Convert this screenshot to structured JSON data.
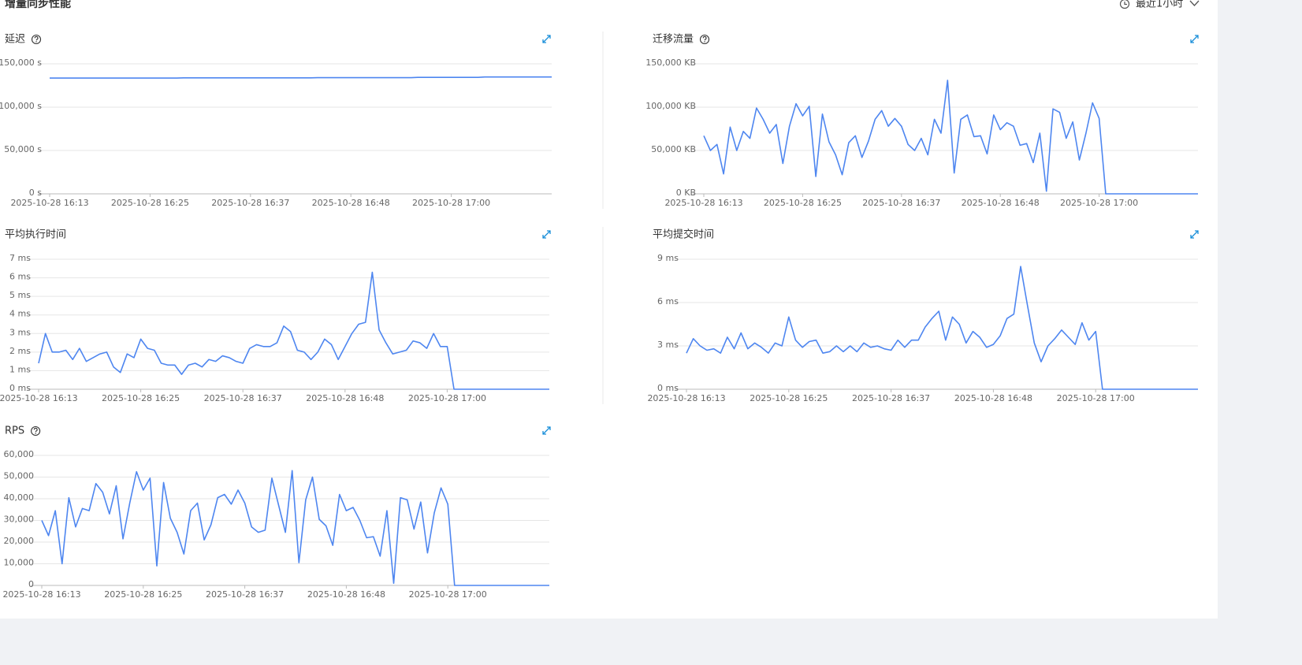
{
  "header": {
    "title": "增量同步性能",
    "time_range": "最近1小时"
  },
  "chart_data": [
    {
      "type": "line",
      "title": "延迟",
      "help_icon": true,
      "color": "#4e86f0",
      "categories": [
        "2025-10-28 16:13",
        null,
        null,
        null,
        null,
        null,
        null,
        null,
        null,
        null,
        null,
        null,
        null,
        null,
        null,
        "2025-10-28 16:25",
        null,
        null,
        null,
        null,
        null,
        null,
        null,
        null,
        null,
        null,
        null,
        null,
        null,
        null,
        "2025-10-28 16:37",
        null,
        null,
        null,
        null,
        null,
        null,
        null,
        null,
        null,
        null,
        null,
        null,
        null,
        null,
        "2025-10-28 16:48",
        null,
        null,
        null,
        null,
        null,
        null,
        null,
        null,
        null,
        null,
        null,
        null,
        null,
        null,
        "2025-10-28 17:00",
        null,
        null,
        null,
        null,
        null,
        null,
        null,
        null,
        null,
        null,
        null,
        null,
        null,
        null,
        null
      ],
      "values": [
        133600,
        133600,
        133600,
        133600,
        133600,
        133600,
        133600,
        133600,
        133600,
        133600,
        133600,
        133600,
        133600,
        133600,
        133600,
        133600,
        133600,
        133600,
        133600,
        133600,
        133800,
        133800,
        133800,
        133800,
        133800,
        133800,
        133800,
        133800,
        133800,
        133800,
        133800,
        133800,
        133800,
        133800,
        133800,
        133800,
        133800,
        133800,
        133800,
        133800,
        134000,
        134000,
        134000,
        134000,
        134000,
        134000,
        134000,
        134000,
        134000,
        134000,
        134000,
        134000,
        134000,
        134000,
        134000,
        134400,
        134400,
        134400,
        134400,
        134400,
        134400,
        134400,
        134400,
        134400,
        134400,
        134800,
        134800,
        134800,
        134800,
        134800,
        134800,
        134800,
        134800,
        134800,
        134800,
        134800
      ],
      "ylim": [
        0,
        150000
      ],
      "yticks": [
        {
          "value": 0,
          "label": "0 s"
        },
        {
          "value": 50000,
          "label": "50,000 s"
        },
        {
          "value": 100000,
          "label": "100,000 s"
        },
        {
          "value": 150000,
          "label": "150,000 s"
        }
      ],
      "grid": true
    },
    {
      "type": "line",
      "title": "迁移流量",
      "help_icon": true,
      "color": "#4e86f0",
      "categories": [
        "2025-10-28 16:13",
        null,
        null,
        null,
        null,
        null,
        null,
        null,
        null,
        null,
        null,
        null,
        null,
        null,
        null,
        "2025-10-28 16:25",
        null,
        null,
        null,
        null,
        null,
        null,
        null,
        null,
        null,
        null,
        null,
        null,
        null,
        null,
        "2025-10-28 16:37",
        null,
        null,
        null,
        null,
        null,
        null,
        null,
        null,
        null,
        null,
        null,
        null,
        null,
        null,
        "2025-10-28 16:48",
        null,
        null,
        null,
        null,
        null,
        null,
        null,
        null,
        null,
        null,
        null,
        null,
        null,
        null,
        "2025-10-28 17:00",
        null,
        null,
        null,
        null,
        null,
        null,
        null,
        null,
        null,
        null,
        null,
        null,
        null,
        null,
        null
      ],
      "values": [
        67000,
        50000,
        57000,
        23000,
        77000,
        50000,
        72000,
        64000,
        99000,
        86000,
        70000,
        80000,
        35000,
        78000,
        104000,
        90000,
        101000,
        20000,
        92000,
        60000,
        45000,
        22000,
        59000,
        67000,
        42000,
        61000,
        86000,
        96000,
        78000,
        87000,
        78000,
        57000,
        50000,
        64000,
        45000,
        86000,
        70000,
        131000,
        24000,
        86000,
        91000,
        66000,
        67000,
        46000,
        91000,
        74000,
        82000,
        78000,
        56000,
        58000,
        36000,
        70000,
        3000,
        98000,
        94000,
        64000,
        83000,
        39000,
        70000,
        105000,
        87000,
        0,
        0,
        0,
        0,
        0,
        0,
        0,
        0,
        0,
        0,
        0,
        0,
        0,
        0,
        0
      ],
      "ylim": [
        0,
        150000
      ],
      "yticks": [
        {
          "value": 0,
          "label": "0 KB"
        },
        {
          "value": 50000,
          "label": "50,000 KB"
        },
        {
          "value": 100000,
          "label": "100,000 KB"
        },
        {
          "value": 150000,
          "label": "150,000 KB"
        }
      ],
      "grid": true
    },
    {
      "type": "line",
      "title": "平均执行时间",
      "help_icon": false,
      "color": "#4e86f0",
      "categories": [
        "2025-10-28 16:13",
        null,
        null,
        null,
        null,
        null,
        null,
        null,
        null,
        null,
        null,
        null,
        null,
        null,
        null,
        "2025-10-28 16:25",
        null,
        null,
        null,
        null,
        null,
        null,
        null,
        null,
        null,
        null,
        null,
        null,
        null,
        null,
        "2025-10-28 16:37",
        null,
        null,
        null,
        null,
        null,
        null,
        null,
        null,
        null,
        null,
        null,
        null,
        null,
        null,
        "2025-10-28 16:48",
        null,
        null,
        null,
        null,
        null,
        null,
        null,
        null,
        null,
        null,
        null,
        null,
        null,
        null,
        "2025-10-28 17:00",
        null,
        null,
        null,
        null,
        null,
        null,
        null,
        null,
        null,
        null,
        null,
        null,
        null,
        null,
        null
      ],
      "values": [
        1.4,
        3.0,
        2.0,
        2.0,
        2.1,
        1.6,
        2.2,
        1.5,
        1.7,
        1.9,
        2.0,
        1.2,
        0.9,
        1.9,
        1.7,
        2.7,
        2.2,
        2.1,
        1.4,
        1.3,
        1.3,
        0.8,
        1.3,
        1.4,
        1.2,
        1.6,
        1.5,
        1.8,
        1.7,
        1.5,
        1.4,
        2.2,
        2.4,
        2.3,
        2.3,
        2.5,
        3.4,
        3.1,
        2.1,
        2.0,
        1.6,
        2.0,
        2.7,
        2.4,
        1.6,
        2.3,
        3.0,
        3.5,
        3.6,
        6.3,
        3.2,
        2.5,
        1.9,
        2.0,
        2.1,
        2.6,
        2.5,
        2.2,
        3.0,
        2.3,
        2.3,
        0,
        0,
        0,
        0,
        0,
        0,
        0,
        0,
        0,
        0,
        0,
        0,
        0,
        0,
        0
      ],
      "ylim": [
        0,
        7
      ],
      "yticks": [
        {
          "value": 0,
          "label": "0 ms"
        },
        {
          "value": 1,
          "label": "1 ms"
        },
        {
          "value": 2,
          "label": "2 ms"
        },
        {
          "value": 3,
          "label": "3 ms"
        },
        {
          "value": 4,
          "label": "4 ms"
        },
        {
          "value": 5,
          "label": "5 ms"
        },
        {
          "value": 6,
          "label": "6 ms"
        },
        {
          "value": 7,
          "label": "7 ms"
        }
      ],
      "grid": true
    },
    {
      "type": "line",
      "title": "平均提交时间",
      "help_icon": false,
      "color": "#4e86f0",
      "categories": [
        "2025-10-28 16:13",
        null,
        null,
        null,
        null,
        null,
        null,
        null,
        null,
        null,
        null,
        null,
        null,
        null,
        null,
        "2025-10-28 16:25",
        null,
        null,
        null,
        null,
        null,
        null,
        null,
        null,
        null,
        null,
        null,
        null,
        null,
        null,
        "2025-10-28 16:37",
        null,
        null,
        null,
        null,
        null,
        null,
        null,
        null,
        null,
        null,
        null,
        null,
        null,
        null,
        "2025-10-28 16:48",
        null,
        null,
        null,
        null,
        null,
        null,
        null,
        null,
        null,
        null,
        null,
        null,
        null,
        null,
        "2025-10-28 17:00",
        null,
        null,
        null,
        null,
        null,
        null,
        null,
        null,
        null,
        null,
        null,
        null,
        null,
        null,
        null
      ],
      "values": [
        2.5,
        3.5,
        3.0,
        2.7,
        2.8,
        2.5,
        3.6,
        2.8,
        3.9,
        2.8,
        3.2,
        2.9,
        2.5,
        3.2,
        3.0,
        5.0,
        3.4,
        2.9,
        3.3,
        3.4,
        2.5,
        2.6,
        3.0,
        2.6,
        3.0,
        2.6,
        3.2,
        2.9,
        3.0,
        2.8,
        2.7,
        3.4,
        2.9,
        3.4,
        3.4,
        4.3,
        4.9,
        5.4,
        3.4,
        5.0,
        4.5,
        3.2,
        4.0,
        3.6,
        2.9,
        3.1,
        3.7,
        4.9,
        5.2,
        8.5,
        5.8,
        3.2,
        1.9,
        3.0,
        3.5,
        4.1,
        3.6,
        3.1,
        4.6,
        3.4,
        4.0,
        0,
        0,
        0,
        0,
        0,
        0,
        0,
        0,
        0,
        0,
        0,
        0,
        0,
        0,
        0
      ],
      "ylim": [
        0,
        9
      ],
      "yticks": [
        {
          "value": 0,
          "label": "0 ms"
        },
        {
          "value": 3,
          "label": "3 ms"
        },
        {
          "value": 6,
          "label": "6 ms"
        },
        {
          "value": 9,
          "label": "9 ms"
        }
      ],
      "grid": true
    },
    {
      "type": "line",
      "title": "RPS",
      "help_icon": true,
      "color": "#4e86f0",
      "categories": [
        "2025-10-28 16:13",
        null,
        null,
        null,
        null,
        null,
        null,
        null,
        null,
        null,
        null,
        null,
        null,
        null,
        null,
        "2025-10-28 16:25",
        null,
        null,
        null,
        null,
        null,
        null,
        null,
        null,
        null,
        null,
        null,
        null,
        null,
        null,
        "2025-10-28 16:37",
        null,
        null,
        null,
        null,
        null,
        null,
        null,
        null,
        null,
        null,
        null,
        null,
        null,
        null,
        "2025-10-28 16:48",
        null,
        null,
        null,
        null,
        null,
        null,
        null,
        null,
        null,
        null,
        null,
        null,
        null,
        null,
        "2025-10-28 17:00",
        null,
        null,
        null,
        null,
        null,
        null,
        null,
        null,
        null,
        null,
        null,
        null,
        null,
        null,
        null
      ],
      "values": [
        30000,
        23000,
        34500,
        10000,
        40500,
        27000,
        35500,
        34500,
        47000,
        43000,
        33000,
        46000,
        21500,
        38000,
        52500,
        44000,
        49500,
        9000,
        47500,
        31000,
        24500,
        14500,
        34500,
        38000,
        21000,
        28000,
        40500,
        42000,
        37500,
        44000,
        38000,
        27000,
        24500,
        25500,
        49500,
        37000,
        24500,
        53000,
        10500,
        39500,
        50000,
        30500,
        27500,
        18500,
        42000,
        34500,
        36000,
        30000,
        22000,
        22500,
        13500,
        34500,
        1000,
        40500,
        39500,
        26000,
        38500,
        15000,
        33500,
        45000,
        37500,
        0,
        0,
        0,
        0,
        0,
        0,
        0,
        0,
        0,
        0,
        0,
        0,
        0,
        0,
        0
      ],
      "ylim": [
        0,
        60000
      ],
      "yticks": [
        0,
        {
          "value": 10000,
          "label": "10,000"
        },
        {
          "value": 20000,
          "label": "20,000"
        },
        {
          "value": 30000,
          "label": "30,000"
        },
        {
          "value": 40000,
          "label": "40,000"
        },
        {
          "value": 50000,
          "label": "50,000"
        },
        {
          "value": 60000,
          "label": "60,000"
        }
      ],
      "grid": true
    }
  ]
}
